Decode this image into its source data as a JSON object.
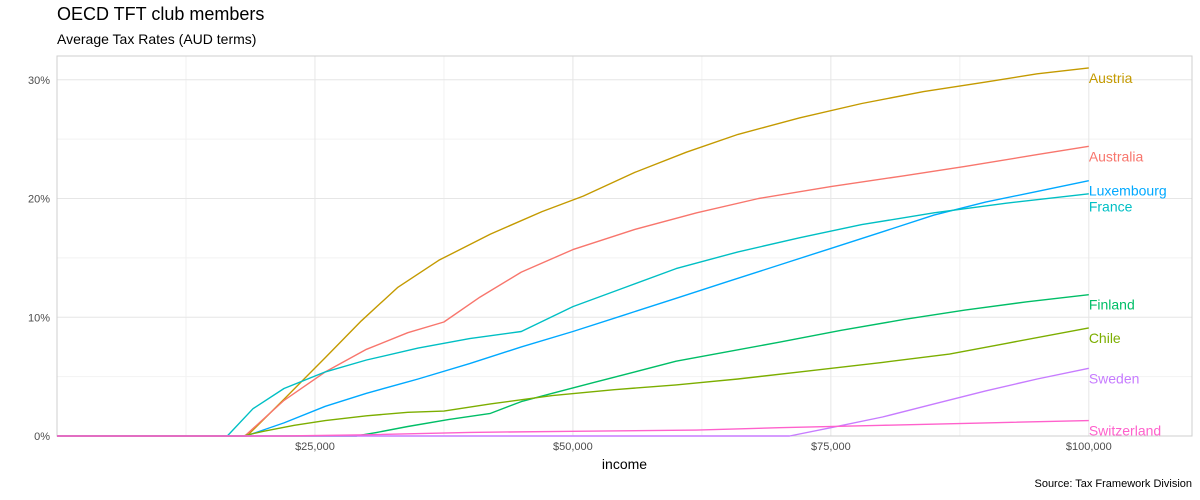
{
  "chart_data": {
    "type": "line",
    "title": "OECD TFT club members",
    "subtitle": "Average Tax Rates (AUD terms)",
    "xlabel": "income",
    "ylabel": "",
    "caption": "Source: Tax Framework Division",
    "xlim": [
      0,
      110000
    ],
    "ylim": [
      0,
      0.32
    ],
    "x_ticks": [
      25000,
      50000,
      75000,
      100000
    ],
    "x_tick_labels": [
      "$25,000",
      "$50,000",
      "$75,000",
      "$100,000"
    ],
    "y_ticks": [
      0,
      0.1,
      0.2,
      0.3
    ],
    "y_tick_labels": [
      "0%",
      "10%",
      "20%",
      "30%"
    ],
    "grid": true,
    "legend": "direct labels at right end of lines",
    "series": [
      {
        "name": "Austria",
        "color": "#C49A00",
        "x": [
          0,
          18400,
          22000,
          26000,
          29500,
          33000,
          37000,
          42000,
          47000,
          51000,
          56000,
          61000,
          66000,
          72000,
          78000,
          84000,
          90000,
          95000,
          100000
        ],
        "y": [
          0,
          0,
          0.031,
          0.066,
          0.097,
          0.125,
          0.148,
          0.17,
          0.189,
          0.202,
          0.222,
          0.239,
          0.254,
          0.268,
          0.28,
          0.29,
          0.298,
          0.305,
          0.31
        ]
      },
      {
        "name": "Australia",
        "color": "#F8766D",
        "x": [
          0,
          18200,
          22000,
          26000,
          30000,
          34000,
          37500,
          41000,
          45000,
          50000,
          56000,
          62000,
          68000,
          75000,
          82000,
          88000,
          95000,
          100000
        ],
        "y": [
          0,
          0,
          0.03,
          0.054,
          0.073,
          0.087,
          0.096,
          0.117,
          0.138,
          0.157,
          0.174,
          0.188,
          0.2,
          0.21,
          0.219,
          0.227,
          0.237,
          0.244
        ]
      },
      {
        "name": "Luxembourg",
        "color": "#00A9FF",
        "x": [
          0,
          18300,
          22000,
          26000,
          30000,
          35000,
          40000,
          45000,
          50000,
          55000,
          60000,
          65000,
          70000,
          75000,
          80000,
          85000,
          90000,
          95000,
          100000
        ],
        "y": [
          0,
          0,
          0.011,
          0.025,
          0.036,
          0.048,
          0.061,
          0.075,
          0.088,
          0.102,
          0.116,
          0.13,
          0.144,
          0.158,
          0.172,
          0.186,
          0.197,
          0.206,
          0.215
        ]
      },
      {
        "name": "France",
        "color": "#00BFC4",
        "x": [
          0,
          16500,
          19000,
          22000,
          26000,
          30000,
          35000,
          40000,
          45000,
          50000,
          55000,
          60000,
          66000,
          72000,
          78000,
          85000,
          92000,
          100000
        ],
        "y": [
          0,
          0,
          0.023,
          0.04,
          0.054,
          0.064,
          0.074,
          0.082,
          0.088,
          0.109,
          0.125,
          0.141,
          0.155,
          0.167,
          0.178,
          0.188,
          0.196,
          0.204
        ]
      },
      {
        "name": "Finland",
        "color": "#00BE67",
        "x": [
          0,
          29000,
          31000,
          34000,
          38000,
          42000,
          45000,
          48000,
          52000,
          56000,
          60000,
          65000,
          70000,
          76000,
          82000,
          88000,
          94000,
          100000
        ],
        "y": [
          0,
          0,
          0.003,
          0.008,
          0.014,
          0.019,
          0.029,
          0.036,
          0.045,
          0.054,
          0.063,
          0.071,
          0.079,
          0.089,
          0.098,
          0.106,
          0.113,
          0.119
        ]
      },
      {
        "name": "Chile",
        "color": "#7CAE00",
        "x": [
          0,
          18000,
          20000,
          23000,
          26000,
          30000,
          34000,
          37500,
          42000,
          48000,
          54000,
          60000,
          66000,
          72000,
          80000,
          86500,
          92000,
          100000
        ],
        "y": [
          0,
          0,
          0.004,
          0.009,
          0.013,
          0.017,
          0.02,
          0.021,
          0.027,
          0.034,
          0.039,
          0.043,
          0.048,
          0.054,
          0.062,
          0.069,
          0.078,
          0.091
        ]
      },
      {
        "name": "Sweden",
        "color": "#C77CFF",
        "x": [
          0,
          71000,
          75000,
          80000,
          85000,
          90000,
          95000,
          100000
        ],
        "y": [
          0,
          0,
          0.007,
          0.016,
          0.027,
          0.038,
          0.048,
          0.057
        ]
      },
      {
        "name": "Switzerland",
        "color": "#FF61CC",
        "x": [
          0,
          22000,
          30000,
          40000,
          50000,
          62000,
          70000,
          80000,
          90000,
          100000
        ],
        "y": [
          0,
          0,
          0.001,
          0.003,
          0.004,
          0.005,
          0.007,
          0.009,
          0.011,
          0.013
        ]
      }
    ]
  }
}
